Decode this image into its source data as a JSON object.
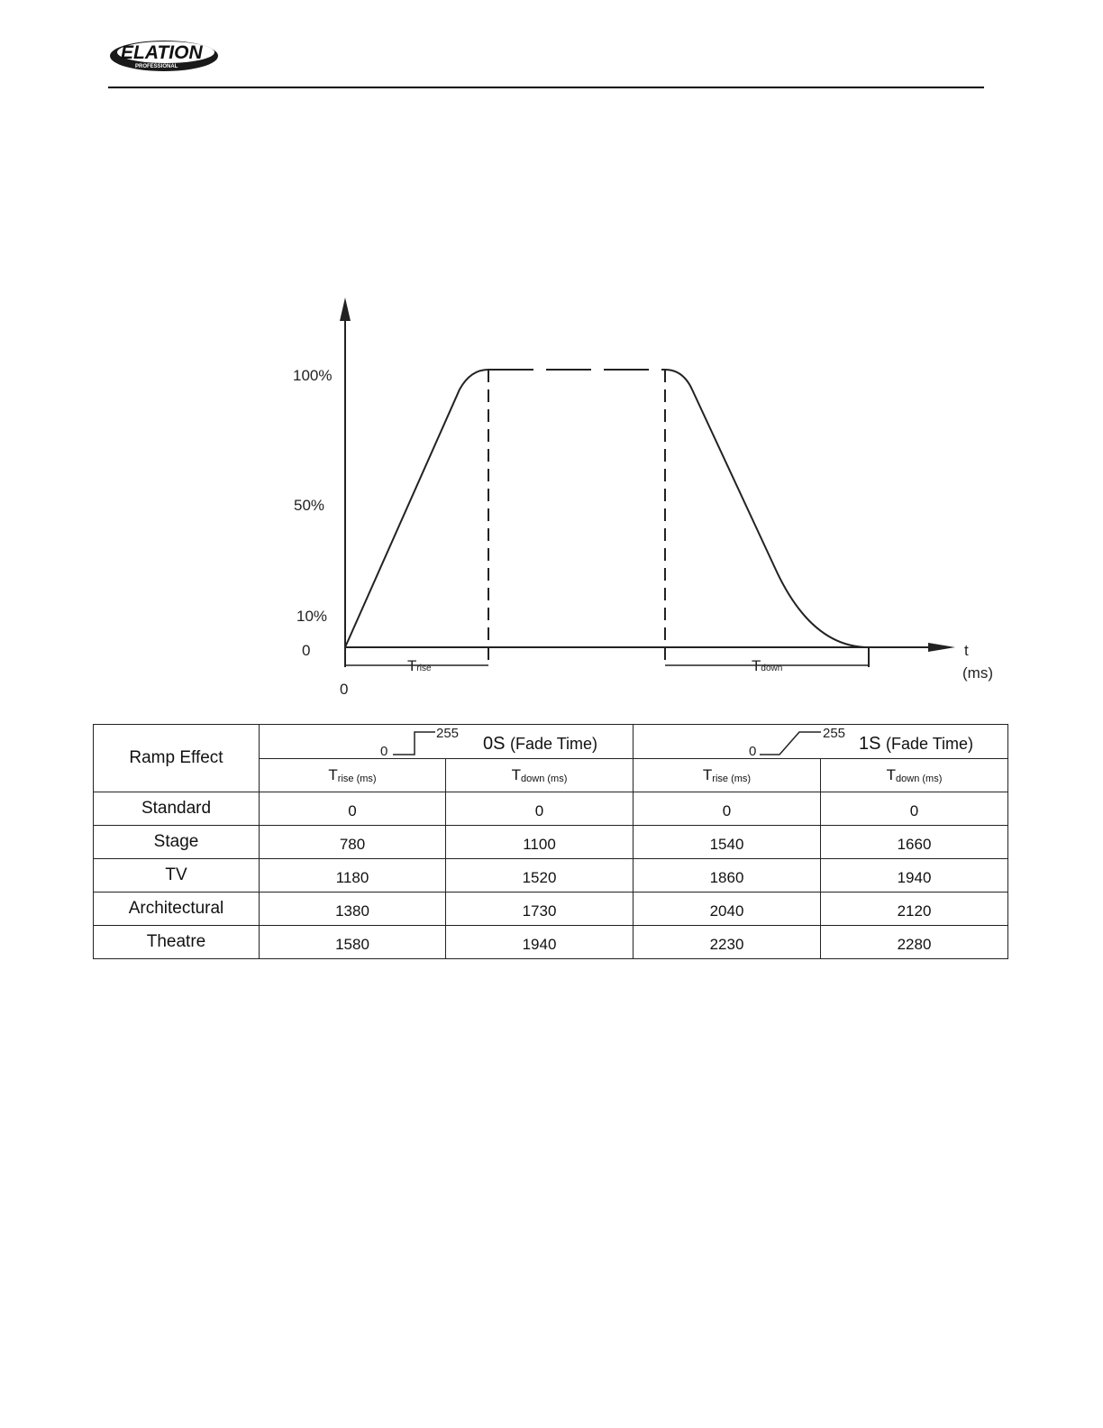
{
  "header": {
    "logo_text": "ELATION",
    "logo_subtext": "PROFESSIONAL"
  },
  "diagram": {
    "y_labels": {
      "y100": "100%",
      "y50": "50%",
      "y10": "10%",
      "y0": "0"
    },
    "x_origin_label": "0",
    "x_axis_label": "t",
    "x_axis_unit": "(ms)",
    "t_rise": {
      "base": "T",
      "sub": "rise"
    },
    "t_down": {
      "base": "T",
      "sub": "down"
    }
  },
  "table": {
    "corner_label": "Ramp Effect",
    "groups": [
      {
        "curve_start": "0",
        "curve_end": "255",
        "title": "0S",
        "paren": "(Fade Time)"
      },
      {
        "curve_start": "0",
        "curve_end": "255",
        "title": "1S",
        "paren": "(Fade Time)"
      }
    ],
    "subheaders": [
      {
        "base": "T",
        "sub": "rise (ms)"
      },
      {
        "base": "T",
        "sub": "down (ms)"
      },
      {
        "base": "T",
        "sub": "rise (ms)"
      },
      {
        "base": "T",
        "sub": "down (ms)"
      }
    ],
    "rows": [
      {
        "label": "Standard",
        "values": [
          "0",
          "0",
          "0",
          "0"
        ]
      },
      {
        "label": "Stage",
        "values": [
          "780",
          "1100",
          "1540",
          "1660"
        ]
      },
      {
        "label": "TV",
        "values": [
          "1180",
          "1520",
          "1860",
          "1940"
        ]
      },
      {
        "label": "Architectural",
        "values": [
          "1380",
          "1730",
          "2040",
          "2120"
        ]
      },
      {
        "label": "Theatre",
        "values": [
          "1580",
          "1940",
          "2230",
          "2280"
        ]
      }
    ]
  }
}
